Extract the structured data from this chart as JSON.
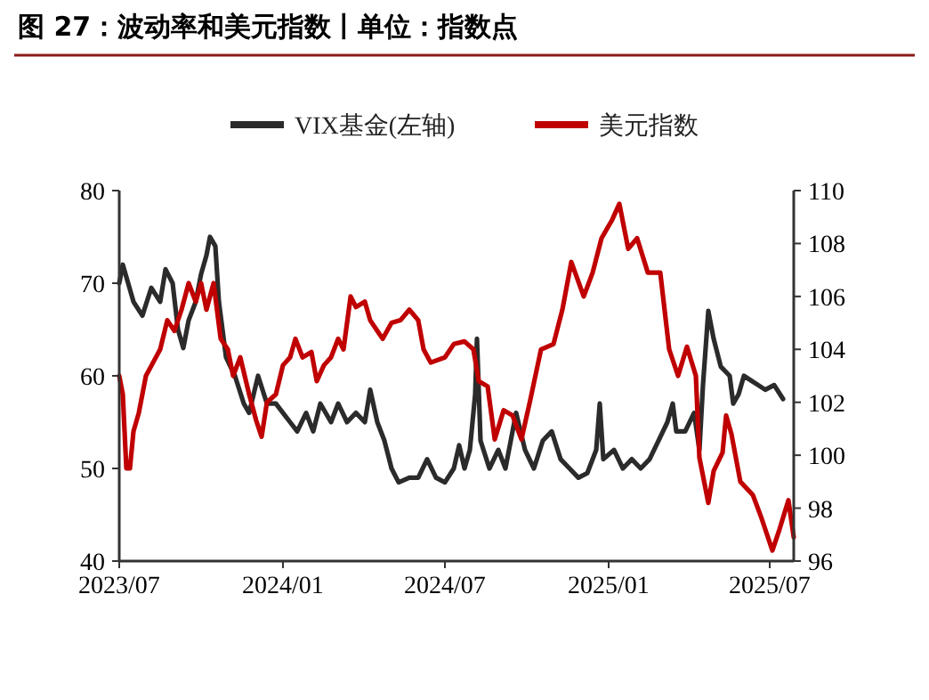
{
  "chart_data": {
    "type": "line",
    "title": "图 27：波动率和美元指数丨单位：指数点",
    "xlim": [
      "2023-07-01",
      "2025-07-28"
    ],
    "xticks": [
      {
        "value": "2023-07-01",
        "label": "2023/07"
      },
      {
        "value": "2024-01-01",
        "label": "2024/01"
      },
      {
        "value": "2024-07-01",
        "label": "2024/07"
      },
      {
        "value": "2025-01-01",
        "label": "2025/01"
      },
      {
        "value": "2025-07-01",
        "label": "2025/07"
      }
    ],
    "ylim": [
      40,
      80
    ],
    "yticks": [
      40,
      50,
      60,
      70,
      80
    ],
    "y2lim": [
      96,
      110
    ],
    "y2ticks": [
      96,
      98,
      100,
      102,
      104,
      106,
      108,
      110
    ],
    "legend": "top",
    "grid": false,
    "line_style": "solid",
    "marker": "none",
    "series": [
      {
        "name": "VIX基金(左轴)",
        "color": "#2b2b2b",
        "axis": "y",
        "x": [
          "2023-07-01",
          "2023-07-05",
          "2023-07-17",
          "2023-07-27",
          "2023-08-06",
          "2023-08-16",
          "2023-08-22",
          "2023-08-30",
          "2023-09-05",
          "2023-09-11",
          "2023-09-17",
          "2023-09-25",
          "2023-10-01",
          "2023-10-07",
          "2023-10-11",
          "2023-10-17",
          "2023-10-21",
          "2023-10-29",
          "2023-11-08",
          "2023-11-18",
          "2023-11-24",
          "2023-12-04",
          "2023-12-14",
          "2023-12-24",
          "2024-01-01",
          "2024-01-09",
          "2024-01-17",
          "2024-01-27",
          "2024-02-04",
          "2024-02-12",
          "2024-02-24",
          "2024-03-03",
          "2024-03-13",
          "2024-03-23",
          "2024-04-02",
          "2024-04-08",
          "2024-04-16",
          "2024-04-24",
          "2024-05-02",
          "2024-05-10",
          "2024-05-22",
          "2024-06-01",
          "2024-06-11",
          "2024-06-21",
          "2024-07-01",
          "2024-07-11",
          "2024-07-17",
          "2024-07-23",
          "2024-07-29",
          "2024-08-04",
          "2024-08-06",
          "2024-08-10",
          "2024-08-20",
          "2024-08-30",
          "2024-09-07",
          "2024-09-19",
          "2024-09-29",
          "2024-10-09",
          "2024-10-19",
          "2024-10-29",
          "2024-11-08",
          "2024-11-18",
          "2024-11-28",
          "2024-12-08",
          "2024-12-18",
          "2024-12-22",
          "2024-12-26",
          "2025-01-07",
          "2025-01-17",
          "2025-01-27",
          "2025-02-06",
          "2025-02-16",
          "2025-02-26",
          "2025-03-08",
          "2025-03-14",
          "2025-03-18",
          "2025-03-28",
          "2025-04-07",
          "2025-04-13",
          "2025-04-17",
          "2025-04-23",
          "2025-04-29",
          "2025-05-07",
          "2025-05-17",
          "2025-05-21",
          "2025-05-27",
          "2025-06-02",
          "2025-06-10",
          "2025-06-18",
          "2025-06-26",
          "2025-07-06",
          "2025-07-16"
        ],
        "values": [
          70,
          72,
          68,
          66.5,
          69.5,
          68,
          71.5,
          70,
          65,
          63,
          66,
          68,
          71,
          73,
          75,
          74,
          68,
          62,
          60,
          57,
          56,
          60,
          57,
          57,
          56,
          55,
          54,
          56,
          54,
          57,
          55,
          57,
          55,
          56,
          55,
          58.5,
          55,
          53,
          50,
          48.5,
          49,
          49,
          51,
          49,
          48.5,
          50,
          52.5,
          50,
          52,
          58,
          64,
          53,
          50,
          52,
          50,
          56,
          52,
          50,
          53,
          54,
          51,
          50,
          49,
          49.5,
          52,
          57,
          51,
          52,
          50,
          51,
          50,
          51,
          53,
          55,
          57,
          54,
          54,
          56,
          52,
          59,
          67,
          64,
          61,
          60,
          57,
          58,
          60,
          59.5,
          59,
          58.5,
          59,
          57.5
        ]
      },
      {
        "name": "美元指数",
        "color": "#c00000",
        "axis": "y2",
        "x": [
          "2023-07-01",
          "2023-07-05",
          "2023-07-09",
          "2023-07-13",
          "2023-07-17",
          "2023-07-23",
          "2023-07-31",
          "2023-08-08",
          "2023-08-16",
          "2023-08-24",
          "2023-09-01",
          "2023-09-09",
          "2023-09-17",
          "2023-09-25",
          "2023-10-01",
          "2023-10-07",
          "2023-10-15",
          "2023-10-23",
          "2023-10-31",
          "2023-11-06",
          "2023-11-14",
          "2023-11-24",
          "2023-12-02",
          "2023-12-08",
          "2023-12-14",
          "2023-12-24",
          "2024-01-01",
          "2024-01-09",
          "2024-01-15",
          "2024-01-23",
          "2024-02-02",
          "2024-02-08",
          "2024-02-16",
          "2024-02-24",
          "2024-03-03",
          "2024-03-09",
          "2024-03-17",
          "2024-03-23",
          "2024-04-02",
          "2024-04-08",
          "2024-04-16",
          "2024-04-22",
          "2024-05-02",
          "2024-05-12",
          "2024-05-22",
          "2024-06-01",
          "2024-06-07",
          "2024-06-15",
          "2024-07-01",
          "2024-07-11",
          "2024-07-23",
          "2024-08-02",
          "2024-08-08",
          "2024-08-18",
          "2024-08-26",
          "2024-09-05",
          "2024-09-15",
          "2024-09-25",
          "2024-10-05",
          "2024-10-17",
          "2024-10-31",
          "2024-11-10",
          "2024-11-20",
          "2024-12-04",
          "2024-12-14",
          "2024-12-24",
          "2025-01-05",
          "2025-01-13",
          "2025-01-23",
          "2025-02-02",
          "2025-02-14",
          "2025-02-28",
          "2025-03-10",
          "2025-03-20",
          "2025-03-30",
          "2025-04-09",
          "2025-04-13",
          "2025-04-23",
          "2025-04-29",
          "2025-05-09",
          "2025-05-13",
          "2025-05-19",
          "2025-05-29",
          "2025-06-12",
          "2025-06-22",
          "2025-07-04",
          "2025-07-12",
          "2025-07-22",
          "2025-07-28"
        ],
        "values": [
          103,
          102.3,
          99.5,
          99.5,
          100.9,
          101.6,
          103,
          103.5,
          104,
          105.1,
          104.7,
          105.5,
          106.5,
          105.8,
          106.5,
          105.5,
          106.5,
          104.4,
          104,
          103,
          103.7,
          102.3,
          101.3,
          100.7,
          102,
          102.3,
          103.4,
          103.7,
          104.4,
          103.7,
          103.9,
          102.8,
          103.4,
          103.7,
          104.4,
          104,
          106,
          105.6,
          105.8,
          105.1,
          104.7,
          104.4,
          105,
          105.1,
          105.5,
          105.1,
          104,
          103.5,
          103.7,
          104.2,
          104.3,
          104,
          102.8,
          102.6,
          100.6,
          101.7,
          101.5,
          100.6,
          102.1,
          104,
          104.2,
          105.5,
          107.3,
          106,
          106.9,
          108.2,
          108.9,
          109.5,
          107.8,
          108.2,
          106.9,
          106.9,
          104,
          103,
          104.1,
          103,
          99.9,
          98.2,
          99.4,
          100.1,
          101.5,
          100.8,
          99,
          98.5,
          97.6,
          96.4,
          97.2,
          98.3,
          96.9
        ]
      }
    ]
  }
}
